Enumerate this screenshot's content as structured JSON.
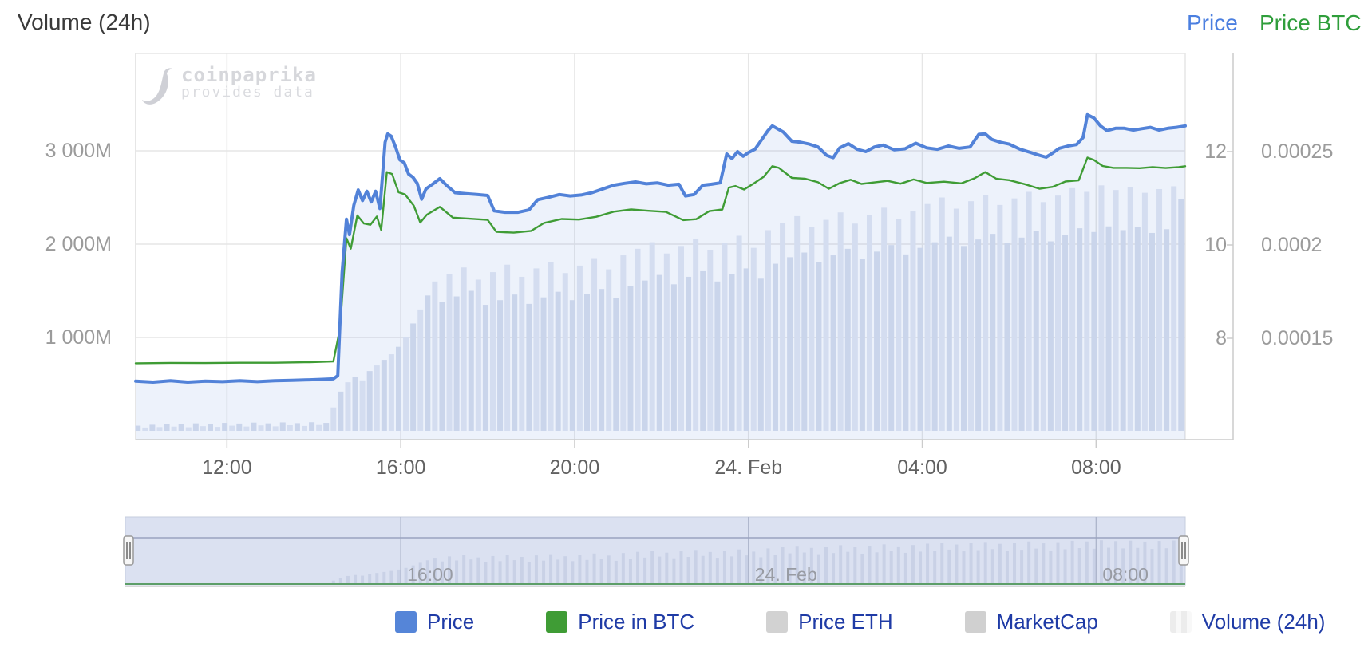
{
  "title": "Volume (24h)",
  "axis_titles": {
    "price": "Price",
    "price_btc": "Price BTC"
  },
  "watermark": {
    "name": "coinpaprika",
    "tagline": "provides data"
  },
  "colors": {
    "price_line": "#5282d8",
    "price_btc_line": "#3f9c35",
    "price_area_fill": "rgba(82,130,216,0.10)",
    "volume_bar_a": "#d9dfee",
    "volume_bar_b": "#e4e8f3",
    "gridline": "#e6e6e6",
    "axis_line": "#cccccc",
    "nav_fill": "#dbe1f1",
    "nav_bar": "#c9d1e6",
    "nav_gridline": "#aeb6cc",
    "nav_outline": "#9aa3bf",
    "nav_green_line": "#5d9e68",
    "nav_border": "#c6cdde",
    "handle_fill": "#f7f7f7",
    "handle_stroke": "#999999",
    "handle_grip": "#666666",
    "legend_text": "#1f3ba6",
    "title_text": "#3a3a3a",
    "axis_title_price": "#4b7fe0",
    "axis_title_btc": "#2f9e3b"
  },
  "axes": {
    "y_volume": {
      "labels": [
        "3 000M",
        "2 000M",
        "1 000M"
      ],
      "values": [
        3000,
        2000,
        1000
      ]
    },
    "y_price": {
      "labels": [
        "12",
        "10",
        "8"
      ],
      "values": [
        12,
        10,
        8
      ]
    },
    "y_price_btc": {
      "labels": [
        "0.00025",
        "0.0002",
        "0.00015"
      ],
      "values": [
        0.00025,
        0.0002,
        0.00015
      ]
    },
    "x": {
      "ticks": [
        {
          "hour": 12,
          "label": "12:00"
        },
        {
          "hour": 16,
          "label": "16:00"
        },
        {
          "hour": 20,
          "label": "20:00"
        },
        {
          "hour": 24,
          "label": "24. Feb"
        },
        {
          "hour": 28,
          "label": "04:00"
        },
        {
          "hour": 32,
          "label": "08:00"
        }
      ]
    }
  },
  "navigator": {
    "ticks": [
      {
        "hour": 16,
        "label": "16:00"
      },
      {
        "hour": 24,
        "label": "24. Feb"
      },
      {
        "hour": 32,
        "label": "08:00"
      }
    ]
  },
  "legend": {
    "items": [
      {
        "label": "Price",
        "swatch": "#5585d8",
        "type": "solid"
      },
      {
        "label": "Price in BTC",
        "swatch": "#3f9c35",
        "type": "solid"
      },
      {
        "label": "Price ETH",
        "swatch": "#d2d2d2",
        "type": "solid"
      },
      {
        "label": "MarketCap",
        "swatch": "#d0d0d0",
        "type": "solid"
      },
      {
        "label": "Volume (24h)",
        "swatch": "#ececec",
        "type": "striped"
      }
    ]
  },
  "chart_data": {
    "type": "line+column stock chart",
    "x_unit": "hours (24 = midnight 24. Feb)",
    "x_range_hours": [
      9.9,
      34.05
    ],
    "y_axes": {
      "volume_M": {
        "min": 0,
        "max": 4000,
        "gridlines": [
          1000,
          2000,
          3000
        ]
      },
      "price": {
        "gridlines": [
          8,
          10,
          12
        ]
      },
      "price_btc": {
        "gridlines": [
          0.00015,
          0.0002,
          0.00025
        ]
      }
    },
    "series": [
      {
        "name": "Price",
        "axis": "price",
        "color": "#5282d8",
        "width": 4,
        "points": [
          [
            9.9,
            7.08
          ],
          [
            10.3,
            7.06
          ],
          [
            10.7,
            7.09
          ],
          [
            11.1,
            7.06
          ],
          [
            11.5,
            7.08
          ],
          [
            11.9,
            7.07
          ],
          [
            12.3,
            7.09
          ],
          [
            12.7,
            7.07
          ],
          [
            13.1,
            7.09
          ],
          [
            13.5,
            7.1
          ],
          [
            13.9,
            7.11
          ],
          [
            14.2,
            7.12
          ],
          [
            14.45,
            7.13
          ],
          [
            14.55,
            7.2
          ],
          [
            14.65,
            9.4
          ],
          [
            14.75,
            10.55
          ],
          [
            14.82,
            10.22
          ],
          [
            14.92,
            10.85
          ],
          [
            15.02,
            11.18
          ],
          [
            15.12,
            10.95
          ],
          [
            15.22,
            11.15
          ],
          [
            15.32,
            10.92
          ],
          [
            15.42,
            11.15
          ],
          [
            15.52,
            10.78
          ],
          [
            15.58,
            11.5
          ],
          [
            15.64,
            12.2
          ],
          [
            15.7,
            12.38
          ],
          [
            15.78,
            12.33
          ],
          [
            15.88,
            12.1
          ],
          [
            15.98,
            11.82
          ],
          [
            16.08,
            11.76
          ],
          [
            16.18,
            11.52
          ],
          [
            16.28,
            11.45
          ],
          [
            16.38,
            11.32
          ],
          [
            16.48,
            10.98
          ],
          [
            16.58,
            11.2
          ],
          [
            16.73,
            11.3
          ],
          [
            16.9,
            11.42
          ],
          [
            17.05,
            11.28
          ],
          [
            17.25,
            11.12
          ],
          [
            17.5,
            11.1
          ],
          [
            17.75,
            11.08
          ],
          [
            18.0,
            11.06
          ],
          [
            18.15,
            10.73
          ],
          [
            18.4,
            10.7
          ],
          [
            18.7,
            10.7
          ],
          [
            18.95,
            10.75
          ],
          [
            19.15,
            10.97
          ],
          [
            19.4,
            11.02
          ],
          [
            19.65,
            11.08
          ],
          [
            19.9,
            11.05
          ],
          [
            20.15,
            11.07
          ],
          [
            20.4,
            11.12
          ],
          [
            20.65,
            11.2
          ],
          [
            20.9,
            11.28
          ],
          [
            21.15,
            11.32
          ],
          [
            21.4,
            11.35
          ],
          [
            21.65,
            11.31
          ],
          [
            21.9,
            11.33
          ],
          [
            22.15,
            11.28
          ],
          [
            22.4,
            11.3
          ],
          [
            22.55,
            11.05
          ],
          [
            22.75,
            11.08
          ],
          [
            22.95,
            11.28
          ],
          [
            23.15,
            11.3
          ],
          [
            23.35,
            11.33
          ],
          [
            23.5,
            11.95
          ],
          [
            23.62,
            11.85
          ],
          [
            23.75,
            12.0
          ],
          [
            23.88,
            11.9
          ],
          [
            24.0,
            11.98
          ],
          [
            24.15,
            12.05
          ],
          [
            24.3,
            12.25
          ],
          [
            24.45,
            12.45
          ],
          [
            24.55,
            12.55
          ],
          [
            24.65,
            12.5
          ],
          [
            24.8,
            12.42
          ],
          [
            25.0,
            12.22
          ],
          [
            25.2,
            12.2
          ],
          [
            25.4,
            12.16
          ],
          [
            25.6,
            12.1
          ],
          [
            25.8,
            11.92
          ],
          [
            25.95,
            11.87
          ],
          [
            26.1,
            12.08
          ],
          [
            26.3,
            12.17
          ],
          [
            26.5,
            12.05
          ],
          [
            26.7,
            12.0
          ],
          [
            26.9,
            12.1
          ],
          [
            27.1,
            12.14
          ],
          [
            27.35,
            12.04
          ],
          [
            27.6,
            12.06
          ],
          [
            27.85,
            12.18
          ],
          [
            28.1,
            12.08
          ],
          [
            28.35,
            12.05
          ],
          [
            28.6,
            12.12
          ],
          [
            28.85,
            12.07
          ],
          [
            29.1,
            12.1
          ],
          [
            29.3,
            12.37
          ],
          [
            29.45,
            12.38
          ],
          [
            29.6,
            12.26
          ],
          [
            29.8,
            12.2
          ],
          [
            30.0,
            12.16
          ],
          [
            30.25,
            12.05
          ],
          [
            30.5,
            11.98
          ],
          [
            30.7,
            11.92
          ],
          [
            30.85,
            11.88
          ],
          [
            31.0,
            11.97
          ],
          [
            31.15,
            12.07
          ],
          [
            31.35,
            12.12
          ],
          [
            31.55,
            12.15
          ],
          [
            31.7,
            12.3
          ],
          [
            31.8,
            12.79
          ],
          [
            31.95,
            12.72
          ],
          [
            32.1,
            12.55
          ],
          [
            32.25,
            12.45
          ],
          [
            32.45,
            12.5
          ],
          [
            32.65,
            12.5
          ],
          [
            32.85,
            12.46
          ],
          [
            33.05,
            12.49
          ],
          [
            33.25,
            12.52
          ],
          [
            33.45,
            12.46
          ],
          [
            33.65,
            12.5
          ],
          [
            33.85,
            12.52
          ],
          [
            34.05,
            12.55
          ]
        ]
      },
      {
        "name": "Price in BTC",
        "axis": "price_btc",
        "color": "#3f9c35",
        "width": 2.4,
        "points": [
          [
            9.9,
            0.0001366
          ],
          [
            10.7,
            0.0001368
          ],
          [
            11.5,
            0.0001367
          ],
          [
            12.3,
            0.0001369
          ],
          [
            13.1,
            0.0001369
          ],
          [
            13.9,
            0.0001372
          ],
          [
            14.45,
            0.0001376
          ],
          [
            14.6,
            0.000155
          ],
          [
            14.75,
            0.0002036
          ],
          [
            14.85,
            0.000198
          ],
          [
            15.0,
            0.0002158
          ],
          [
            15.15,
            0.0002115
          ],
          [
            15.3,
            0.0002108
          ],
          [
            15.45,
            0.0002152
          ],
          [
            15.55,
            0.000208
          ],
          [
            15.68,
            0.000239
          ],
          [
            15.8,
            0.000238
          ],
          [
            15.95,
            0.0002282
          ],
          [
            16.1,
            0.000227
          ],
          [
            16.3,
            0.000221
          ],
          [
            16.45,
            0.000212
          ],
          [
            16.6,
            0.0002162
          ],
          [
            16.9,
            0.0002204
          ],
          [
            17.2,
            0.0002146
          ],
          [
            17.5,
            0.0002142
          ],
          [
            18.0,
            0.0002134
          ],
          [
            18.2,
            0.000207
          ],
          [
            18.6,
            0.0002066
          ],
          [
            19.0,
            0.0002075
          ],
          [
            19.3,
            0.0002118
          ],
          [
            19.7,
            0.0002139
          ],
          [
            20.1,
            0.0002136
          ],
          [
            20.5,
            0.0002151
          ],
          [
            20.9,
            0.0002178
          ],
          [
            21.3,
            0.000219
          ],
          [
            21.7,
            0.0002183
          ],
          [
            22.1,
            0.0002177
          ],
          [
            22.5,
            0.0002133
          ],
          [
            22.8,
            0.0002138
          ],
          [
            23.1,
            0.0002181
          ],
          [
            23.4,
            0.000219
          ],
          [
            23.55,
            0.0002307
          ],
          [
            23.7,
            0.0002316
          ],
          [
            23.9,
            0.0002297
          ],
          [
            24.1,
            0.0002326
          ],
          [
            24.35,
            0.0002365
          ],
          [
            24.55,
            0.0002422
          ],
          [
            24.7,
            0.0002413
          ],
          [
            25.0,
            0.0002359
          ],
          [
            25.3,
            0.0002355
          ],
          [
            25.6,
            0.0002336
          ],
          [
            25.85,
            0.0002301
          ],
          [
            26.1,
            0.0002331
          ],
          [
            26.35,
            0.0002349
          ],
          [
            26.6,
            0.0002327
          ],
          [
            26.9,
            0.0002335
          ],
          [
            27.2,
            0.0002343
          ],
          [
            27.5,
            0.0002328
          ],
          [
            27.8,
            0.0002351
          ],
          [
            28.1,
            0.0002332
          ],
          [
            28.5,
            0.0002339
          ],
          [
            28.9,
            0.000233
          ],
          [
            29.2,
            0.0002357
          ],
          [
            29.45,
            0.000239
          ],
          [
            29.7,
            0.0002355
          ],
          [
            30.0,
            0.0002347
          ],
          [
            30.35,
            0.0002326
          ],
          [
            30.7,
            0.0002301
          ],
          [
            31.0,
            0.0002311
          ],
          [
            31.3,
            0.000234
          ],
          [
            31.6,
            0.0002346
          ],
          [
            31.8,
            0.0002468
          ],
          [
            31.95,
            0.0002455
          ],
          [
            32.15,
            0.0002423
          ],
          [
            32.4,
            0.0002413
          ],
          [
            32.7,
            0.0002413
          ],
          [
            33.0,
            0.0002411
          ],
          [
            33.3,
            0.0002417
          ],
          [
            33.6,
            0.0002412
          ],
          [
            33.9,
            0.0002417
          ],
          [
            34.05,
            0.0002422
          ]
        ]
      }
    ],
    "volume": {
      "name": "Volume (24h)",
      "axis": "volume_M",
      "start_hour": 9.95,
      "step_hours": 0.1667,
      "values": [
        55,
        35,
        65,
        40,
        75,
        45,
        70,
        38,
        80,
        50,
        72,
        42,
        85,
        55,
        78,
        46,
        88,
        58,
        80,
        48,
        90,
        60,
        82,
        52,
        92,
        62,
        85,
        250,
        420,
        520,
        580,
        540,
        640,
        700,
        760,
        820,
        900,
        1000,
        1150,
        1300,
        1450,
        1600,
        1380,
        1680,
        1440,
        1750,
        1500,
        1620,
        1350,
        1700,
        1400,
        1780,
        1460,
        1650,
        1360,
        1740,
        1430,
        1810,
        1490,
        1690,
        1400,
        1770,
        1470,
        1850,
        1520,
        1730,
        1420,
        1880,
        1550,
        1950,
        1610,
        2020,
        1670,
        1900,
        1570,
        1980,
        1650,
        2060,
        1710,
        1940,
        1600,
        2010,
        1680,
        2090,
        1740,
        1960,
        1630,
        2150,
        1790,
        2230,
        1860,
        2300,
        1910,
        2180,
        1810,
        2260,
        1880,
        2340,
        1950,
        2220,
        1840,
        2310,
        1920,
        2390,
        1990,
        2270,
        1890,
        2350,
        1960,
        2430,
        2020,
        2500,
        2080,
        2380,
        1980,
        2460,
        2050,
        2530,
        2110,
        2420,
        2010,
        2490,
        2070,
        2560,
        2140,
        2450,
        2030,
        2520,
        2100,
        2600,
        2170,
        2560,
        2130,
        2630,
        2190,
        2580,
        2150,
        2610,
        2180,
        2550,
        2120,
        2590,
        2160,
        2620,
        2480
      ]
    }
  }
}
